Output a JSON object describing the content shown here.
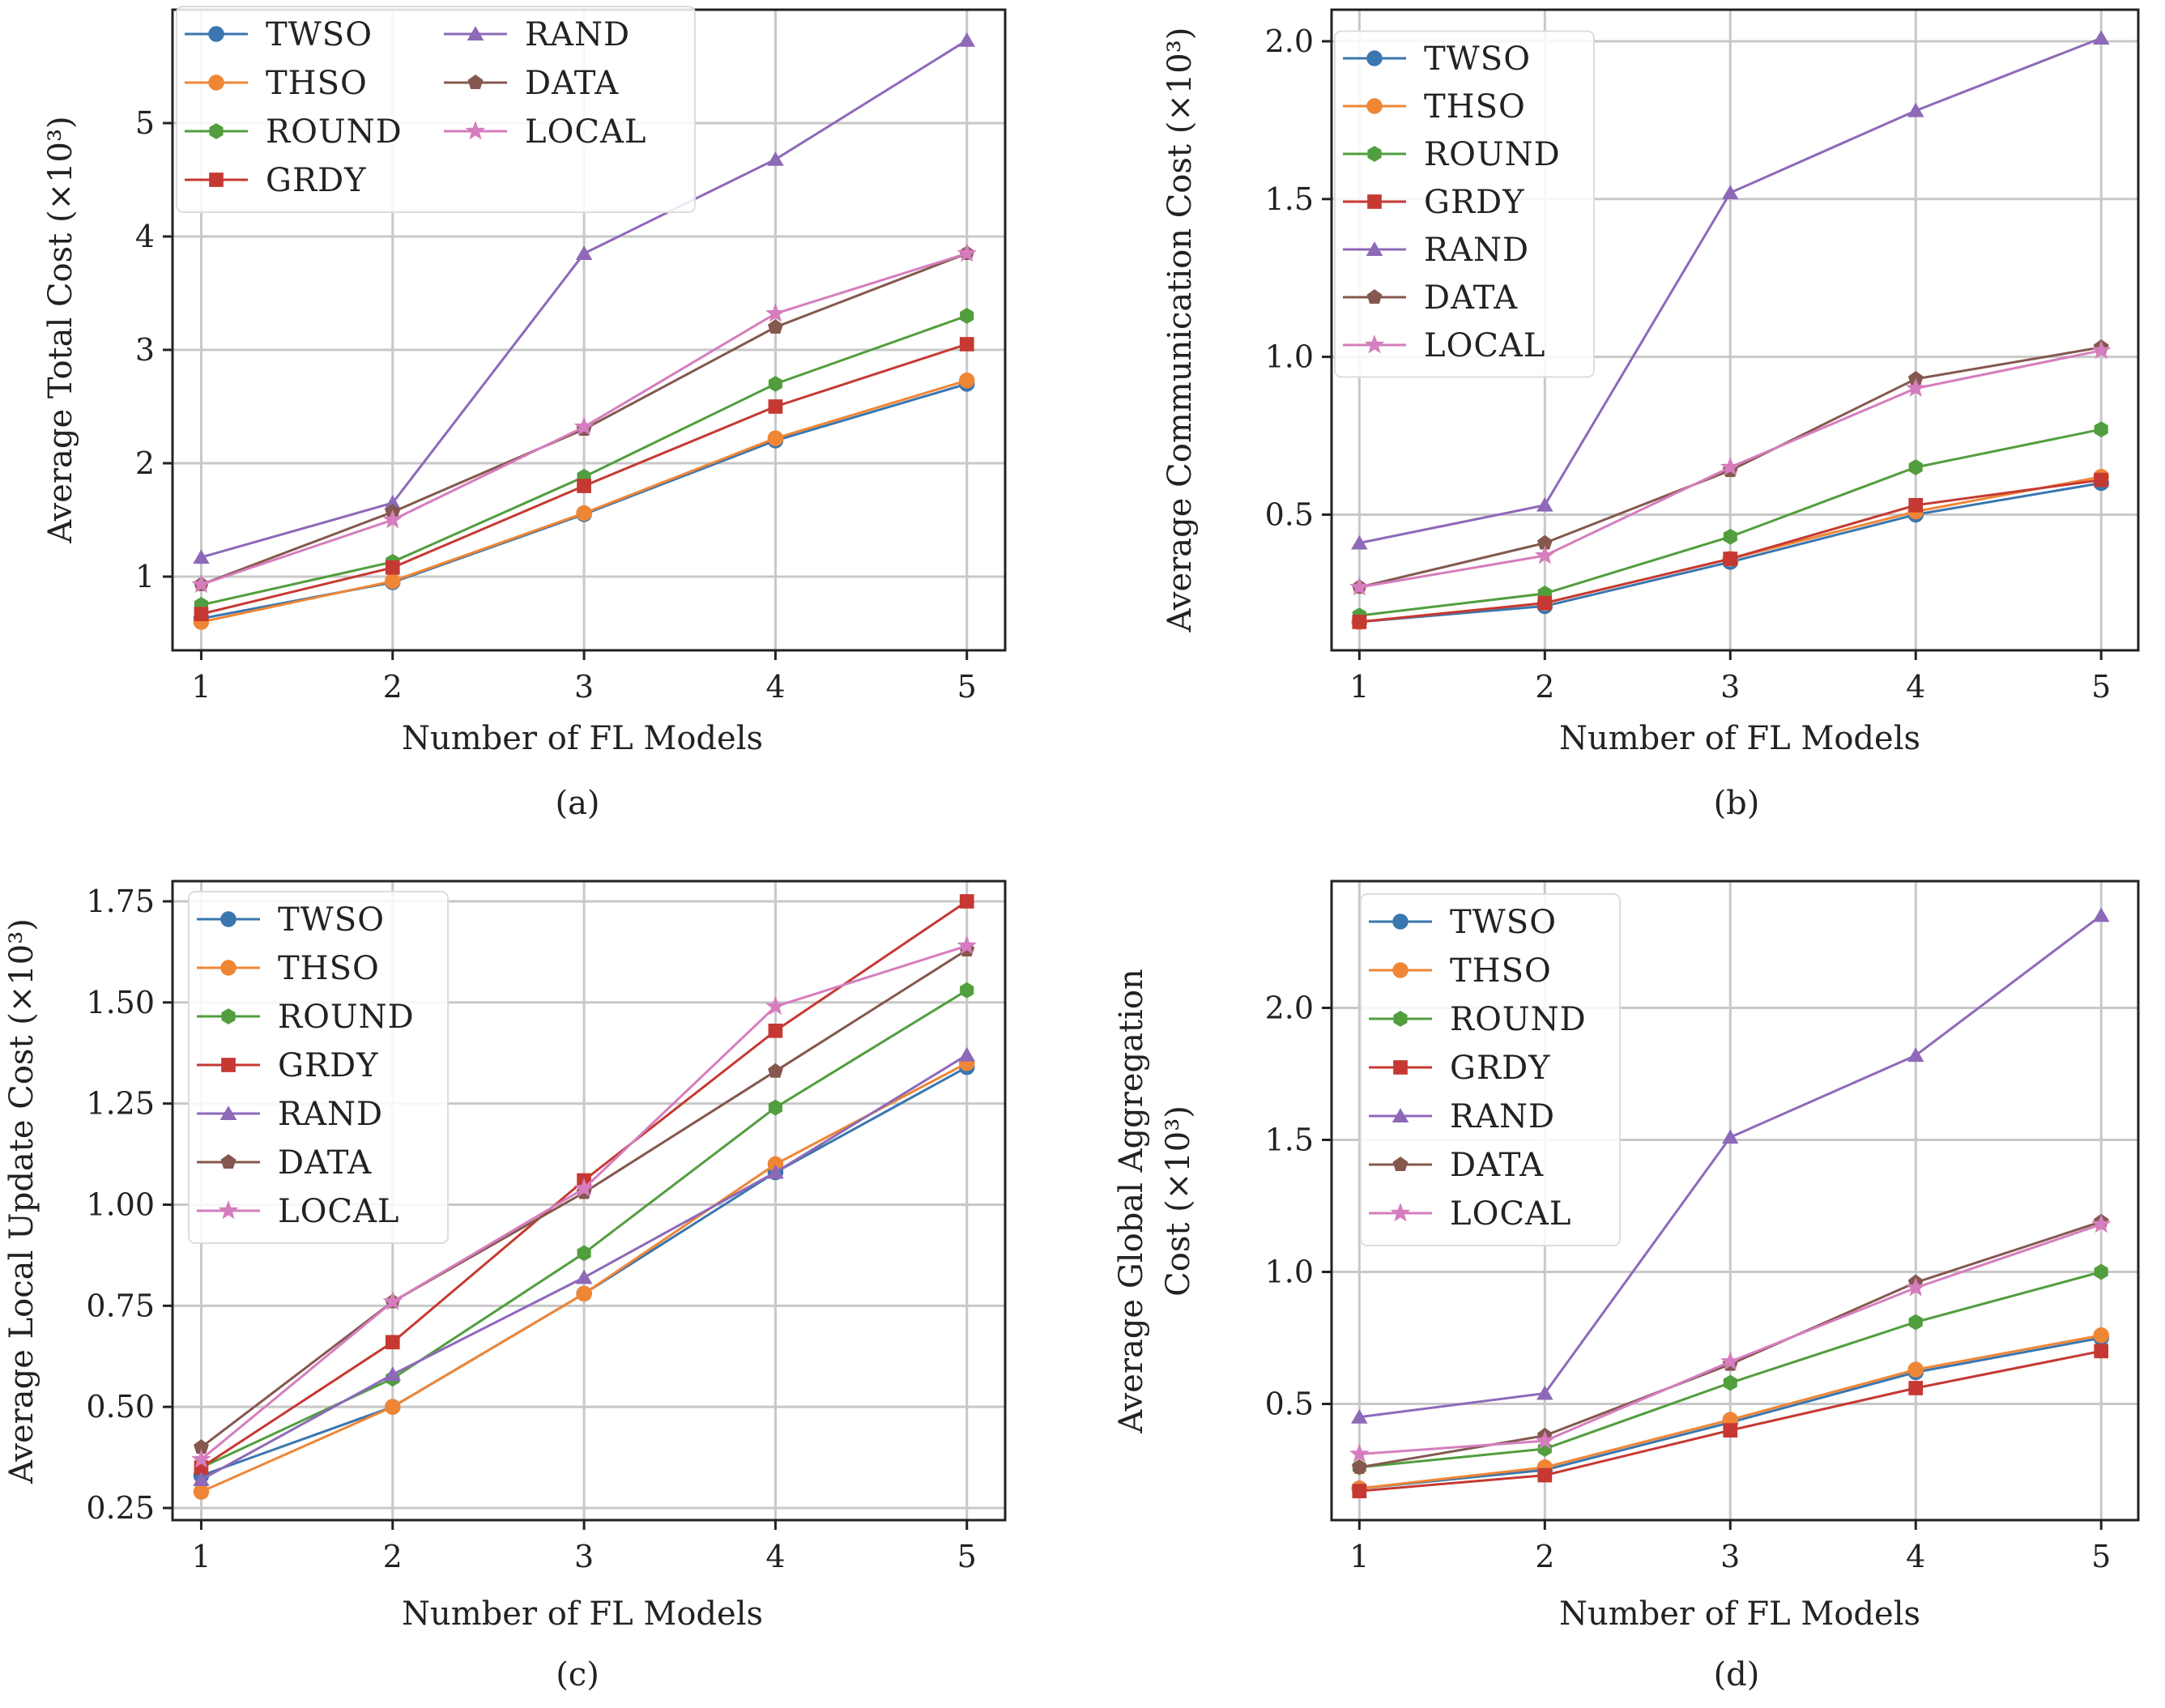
{
  "colors": {
    "TWSO": "#3a76af",
    "THSO": "#ef8636",
    "ROUND": "#519e3e",
    "GRDY": "#c53932",
    "RAND": "#8d69b8",
    "DATA": "#84584e",
    "LOCAL": "#d57dbe"
  },
  "markers": {
    "TWSO": "circle",
    "THSO": "circle",
    "ROUND": "hexagon",
    "GRDY": "square",
    "RAND": "triangle",
    "DATA": "pentagon",
    "LOCAL": "star"
  },
  "chart_data": [
    {
      "type": "line",
      "caption": "(a)",
      "xlabel": "Number of FL Models",
      "ylabel": "Average Total Cost (×10³)",
      "x": [
        1,
        2,
        3,
        4,
        5
      ],
      "xlim": [
        0.85,
        5.2
      ],
      "ylim": [
        0.35,
        6.0
      ],
      "yticks": [
        1,
        2,
        3,
        4,
        5
      ],
      "ytick_labels": [
        "1",
        "2",
        "3",
        "4",
        "5"
      ],
      "legend_placement": "top-left",
      "legend_columns": 2,
      "series": [
        {
          "name": "TWSO",
          "values": [
            0.63,
            0.95,
            1.55,
            2.2,
            2.7
          ]
        },
        {
          "name": "THSO",
          "values": [
            0.6,
            0.96,
            1.56,
            2.22,
            2.73
          ]
        },
        {
          "name": "ROUND",
          "values": [
            0.75,
            1.13,
            1.88,
            2.7,
            3.3
          ]
        },
        {
          "name": "GRDY",
          "values": [
            0.67,
            1.08,
            1.8,
            2.5,
            3.05
          ]
        },
        {
          "name": "RAND",
          "values": [
            1.17,
            1.65,
            3.85,
            4.68,
            5.73
          ]
        },
        {
          "name": "DATA",
          "values": [
            0.93,
            1.57,
            2.3,
            3.2,
            3.85
          ]
        },
        {
          "name": "LOCAL",
          "values": [
            0.93,
            1.5,
            2.32,
            3.32,
            3.85
          ]
        }
      ]
    },
    {
      "type": "line",
      "caption": "(b)",
      "xlabel": "Number of FL Models",
      "ylabel": "Average Communication Cost (×10³)",
      "x": [
        1,
        2,
        3,
        4,
        5
      ],
      "xlim": [
        0.85,
        5.2
      ],
      "ylim": [
        0.07,
        2.1
      ],
      "yticks": [
        0.5,
        1.0,
        1.5,
        2.0
      ],
      "ytick_labels": [
        "0.5",
        "1.0",
        "1.5",
        "2.0"
      ],
      "legend_placement": "top-left",
      "legend_columns": 1,
      "series": [
        {
          "name": "TWSO",
          "values": [
            0.16,
            0.21,
            0.35,
            0.5,
            0.6
          ]
        },
        {
          "name": "THSO",
          "values": [
            0.16,
            0.22,
            0.36,
            0.51,
            0.62
          ]
        },
        {
          "name": "ROUND",
          "values": [
            0.18,
            0.25,
            0.43,
            0.65,
            0.77
          ]
        },
        {
          "name": "GRDY",
          "values": [
            0.16,
            0.22,
            0.36,
            0.53,
            0.61
          ]
        },
        {
          "name": "RAND",
          "values": [
            0.41,
            0.53,
            1.52,
            1.78,
            2.01
          ]
        },
        {
          "name": "DATA",
          "values": [
            0.27,
            0.41,
            0.64,
            0.93,
            1.03
          ]
        },
        {
          "name": "LOCAL",
          "values": [
            0.27,
            0.37,
            0.65,
            0.9,
            1.02
          ]
        }
      ]
    },
    {
      "type": "line",
      "caption": "(c)",
      "xlabel": "Number of FL Models",
      "ylabel": "Average Local Update Cost (×10³)",
      "x": [
        1,
        2,
        3,
        4,
        5
      ],
      "xlim": [
        0.85,
        5.2
      ],
      "ylim": [
        0.22,
        1.8
      ],
      "yticks": [
        0.25,
        0.5,
        0.75,
        1.0,
        1.25,
        1.5,
        1.75
      ],
      "ytick_labels": [
        "0.25",
        "0.50",
        "0.75",
        "1.00",
        "1.25",
        "1.50",
        "1.75"
      ],
      "legend_placement": "top-left",
      "legend_columns": 1,
      "series": [
        {
          "name": "TWSO",
          "values": [
            0.33,
            0.5,
            0.78,
            1.08,
            1.34
          ]
        },
        {
          "name": "THSO",
          "values": [
            0.29,
            0.5,
            0.78,
            1.1,
            1.35
          ]
        },
        {
          "name": "ROUND",
          "values": [
            0.35,
            0.57,
            0.88,
            1.24,
            1.53
          ]
        },
        {
          "name": "GRDY",
          "values": [
            0.35,
            0.66,
            1.06,
            1.43,
            1.75
          ]
        },
        {
          "name": "RAND",
          "values": [
            0.32,
            0.58,
            0.82,
            1.08,
            1.37
          ]
        },
        {
          "name": "DATA",
          "values": [
            0.4,
            0.76,
            1.03,
            1.33,
            1.63
          ]
        },
        {
          "name": "LOCAL",
          "values": [
            0.37,
            0.76,
            1.04,
            1.49,
            1.64
          ]
        }
      ]
    },
    {
      "type": "line",
      "caption": "(d)",
      "xlabel": "Number of FL Models",
      "ylabel": "Average Global  Aggregation Cost (×10³)",
      "ylabel_lines": [
        "Average Global  Aggregation",
        "Cost (×10³)"
      ],
      "x": [
        1,
        2,
        3,
        4,
        5
      ],
      "xlim": [
        0.85,
        5.2
      ],
      "ylim": [
        0.06,
        2.48
      ],
      "yticks": [
        0.5,
        1.0,
        1.5,
        2.0
      ],
      "ytick_labels": [
        "0.5",
        "1.0",
        "1.5",
        "2.0"
      ],
      "legend_placement": "top-left",
      "legend_columns": 1,
      "series": [
        {
          "name": "TWSO",
          "values": [
            0.18,
            0.25,
            0.43,
            0.62,
            0.75
          ]
        },
        {
          "name": "THSO",
          "values": [
            0.18,
            0.26,
            0.44,
            0.63,
            0.76
          ]
        },
        {
          "name": "ROUND",
          "values": [
            0.26,
            0.33,
            0.58,
            0.81,
            1.0
          ]
        },
        {
          "name": "GRDY",
          "values": [
            0.17,
            0.23,
            0.4,
            0.56,
            0.7
          ]
        },
        {
          "name": "RAND",
          "values": [
            0.45,
            0.54,
            1.51,
            1.82,
            2.35
          ]
        },
        {
          "name": "DATA",
          "values": [
            0.26,
            0.38,
            0.65,
            0.96,
            1.19
          ]
        },
        {
          "name": "LOCAL",
          "values": [
            0.31,
            0.36,
            0.66,
            0.94,
            1.18
          ]
        }
      ]
    }
  ]
}
